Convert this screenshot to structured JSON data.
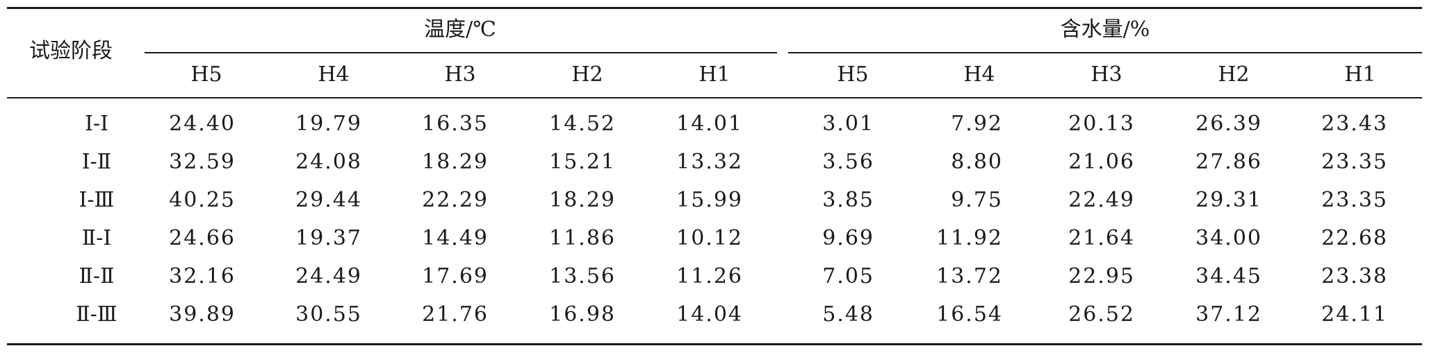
{
  "table": {
    "stub_header": "试验阶段",
    "groups": [
      {
        "label": "温度/℃"
      },
      {
        "label": "含水量/%"
      }
    ],
    "subheaders": {
      "temperature": [
        "H5",
        "H4",
        "H3",
        "H2",
        "H1"
      ],
      "water": [
        "H5",
        "H4",
        "H3",
        "H2",
        "H1"
      ]
    },
    "rows": [
      {
        "stage": "Ⅰ-Ⅰ",
        "temperature": [
          "24.40",
          "19.79",
          "16.35",
          "14.52",
          "14.01"
        ],
        "water": [
          "3.01",
          "7.92",
          "20.13",
          "26.39",
          "23.43"
        ]
      },
      {
        "stage": "Ⅰ-Ⅱ",
        "temperature": [
          "32.59",
          "24.08",
          "18.29",
          "15.21",
          "13.32"
        ],
        "water": [
          "3.56",
          "8.80",
          "21.06",
          "27.86",
          "23.35"
        ]
      },
      {
        "stage": "Ⅰ-Ⅲ",
        "temperature": [
          "40.25",
          "29.44",
          "22.29",
          "18.29",
          "15.99"
        ],
        "water": [
          "3.85",
          "9.75",
          "22.49",
          "29.31",
          "23.35"
        ]
      },
      {
        "stage": "Ⅱ-Ⅰ",
        "temperature": [
          "24.66",
          "19.37",
          "14.49",
          "11.86",
          "10.12"
        ],
        "water": [
          "9.69",
          "11.92",
          "21.64",
          "34.00",
          "22.68"
        ]
      },
      {
        "stage": "Ⅱ-Ⅱ",
        "temperature": [
          "32.16",
          "24.49",
          "17.69",
          "13.56",
          "11.26"
        ],
        "water": [
          "7.05",
          "13.72",
          "22.95",
          "34.45",
          "23.38"
        ]
      },
      {
        "stage": "Ⅱ-Ⅲ",
        "temperature": [
          "39.89",
          "30.55",
          "21.76",
          "16.98",
          "14.04"
        ],
        "water": [
          "5.48",
          "16.54",
          "26.52",
          "37.12",
          "24.11"
        ]
      }
    ]
  }
}
